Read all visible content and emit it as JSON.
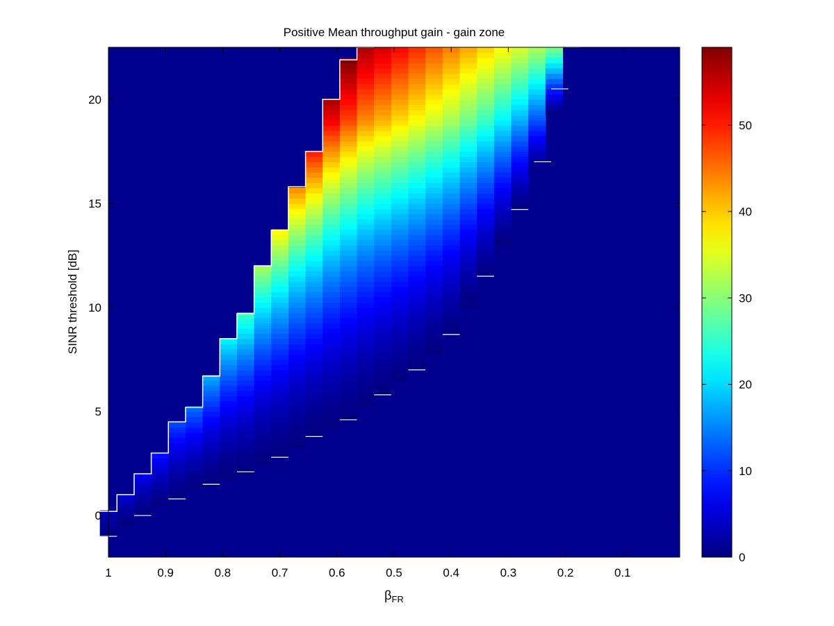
{
  "chart_data": {
    "type": "heatmap",
    "title": "Positive Mean throughput gain - gain zone",
    "xlabel_main": "β",
    "xlabel_sub": "FR",
    "ylabel": "SINR threshold [dB]",
    "x_reversed": true,
    "xlim": [
      1.0,
      0.0
    ],
    "ylim": [
      -2.0,
      22.5
    ],
    "xticks": [
      {
        "value": 1.0,
        "label": "1"
      },
      {
        "value": 0.9,
        "label": "0.9"
      },
      {
        "value": 0.8,
        "label": "0.8"
      },
      {
        "value": 0.7,
        "label": "0.7"
      },
      {
        "value": 0.6,
        "label": "0.6"
      },
      {
        "value": 0.5,
        "label": "0.5"
      },
      {
        "value": 0.4,
        "label": "0.4"
      },
      {
        "value": 0.3,
        "label": "0.3"
      },
      {
        "value": 0.2,
        "label": "0.2"
      },
      {
        "value": 0.1,
        "label": "0.1"
      }
    ],
    "yticks": [
      {
        "value": 0,
        "label": "0"
      },
      {
        "value": 5,
        "label": "5"
      },
      {
        "value": 10,
        "label": "10"
      },
      {
        "value": 15,
        "label": "15"
      },
      {
        "value": 20,
        "label": "20"
      }
    ],
    "x_step": 0.03,
    "y_step": 0.25,
    "x_range": [
      1.0,
      0.01
    ],
    "y_range": [
      -2.0,
      22.5
    ],
    "colorbar": {
      "colormap": "jet",
      "min": 0,
      "max": 59,
      "ticks": [
        {
          "value": 0,
          "label": "0"
        },
        {
          "value": 10,
          "label": "10"
        },
        {
          "value": 20,
          "label": "20"
        },
        {
          "value": 30,
          "label": "30"
        },
        {
          "value": 40,
          "label": "40"
        },
        {
          "value": 50,
          "label": "50"
        }
      ]
    },
    "gain_zone": {
      "upper_boundary": [
        {
          "x": 1.0,
          "y": 0.2
        },
        {
          "x": 0.97,
          "y": 1.0
        },
        {
          "x": 0.94,
          "y": 2.0
        },
        {
          "x": 0.91,
          "y": 3.0
        },
        {
          "x": 0.88,
          "y": 4.5
        },
        {
          "x": 0.85,
          "y": 5.2
        },
        {
          "x": 0.82,
          "y": 6.7
        },
        {
          "x": 0.79,
          "y": 8.5
        },
        {
          "x": 0.76,
          "y": 9.7
        },
        {
          "x": 0.73,
          "y": 12.0
        },
        {
          "x": 0.7,
          "y": 13.7
        },
        {
          "x": 0.67,
          "y": 15.8
        },
        {
          "x": 0.64,
          "y": 17.5
        },
        {
          "x": 0.61,
          "y": 20.0
        },
        {
          "x": 0.58,
          "y": 21.9
        },
        {
          "x": 0.55,
          "y": 22.5
        }
      ],
      "lower_boundary": [
        {
          "x": 1.0,
          "y": -1.0
        },
        {
          "x": 0.94,
          "y": 0.0
        },
        {
          "x": 0.88,
          "y": 0.8
        },
        {
          "x": 0.82,
          "y": 1.5
        },
        {
          "x": 0.76,
          "y": 2.1
        },
        {
          "x": 0.7,
          "y": 2.8
        },
        {
          "x": 0.64,
          "y": 3.8
        },
        {
          "x": 0.58,
          "y": 4.6
        },
        {
          "x": 0.52,
          "y": 5.8
        },
        {
          "x": 0.46,
          "y": 7.0
        },
        {
          "x": 0.4,
          "y": 8.7
        },
        {
          "x": 0.34,
          "y": 11.5
        },
        {
          "x": 0.28,
          "y": 14.7
        },
        {
          "x": 0.24,
          "y": 17.0
        },
        {
          "x": 0.21,
          "y": 20.5
        },
        {
          "x": 0.19,
          "y": 22.5
        }
      ],
      "peak": {
        "x": 0.58,
        "y": 20.5,
        "value": 59
      }
    }
  }
}
